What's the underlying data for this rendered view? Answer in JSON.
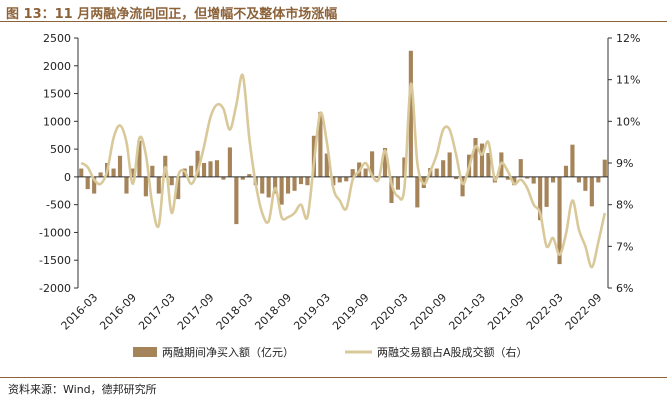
{
  "header": {
    "title": "图 13：11 月两融净流向回正，但增幅不及整体市场涨幅"
  },
  "footer": {
    "source": "资料来源：Wind，德邦研究所"
  },
  "colors": {
    "bar": "#a5845a",
    "line": "#d9c99a",
    "accent": "#8c6239"
  },
  "chart_data": {
    "type": "bar+line",
    "title": "",
    "xlabel": "",
    "ylabel": "",
    "ylim_left": [
      -2000,
      2500
    ],
    "yticks_left": [
      "2500",
      "2000",
      "1500",
      "1000",
      "500",
      "0",
      "-500",
      "-1000",
      "-1500",
      "-2000"
    ],
    "ylim_right": [
      6,
      12
    ],
    "yticks_right": [
      "12%",
      "11%",
      "10%",
      "9%",
      "8%",
      "7%",
      "6%"
    ],
    "x_tick_labels": [
      "2016-03",
      "2016-09",
      "2017-03",
      "2017-09",
      "2018-03",
      "2018-09",
      "2019-03",
      "2019-09",
      "2020-03",
      "2020-09",
      "2021-03",
      "2021-09",
      "2022-03",
      "2022-09"
    ],
    "x_tick_index": [
      2,
      8,
      14,
      20,
      26,
      32,
      38,
      44,
      50,
      56,
      62,
      68,
      74,
      80
    ],
    "legend": [
      "两融期间净买入额（亿元）",
      "两融交易额占A股成交额（右）"
    ],
    "series": [
      {
        "name": "两融期间净买入额（亿元）",
        "axis": "left",
        "kind": "bar",
        "values": [
          150,
          -220,
          -300,
          80,
          250,
          150,
          380,
          -300,
          150,
          650,
          -350,
          200,
          -300,
          380,
          -150,
          -400,
          150,
          200,
          470,
          250,
          280,
          300,
          -50,
          530,
          -850,
          -50,
          50,
          -150,
          -300,
          -370,
          -300,
          -500,
          -300,
          -250,
          -130,
          -150,
          740,
          1170,
          420,
          -150,
          -100,
          -80,
          140,
          260,
          150,
          460,
          -20,
          520,
          -470,
          -230,
          350,
          2270,
          -550,
          -200,
          160,
          150,
          300,
          440,
          -40,
          -350,
          400,
          700,
          600,
          430,
          -100,
          440,
          -50,
          -150,
          320,
          -30,
          -120,
          -780,
          -540,
          -100,
          -1570,
          200,
          580,
          -100,
          -250,
          -530,
          -100,
          310
        ]
      },
      {
        "name": "两融交易额占A股成交额（右）",
        "axis": "right",
        "kind": "line",
        "values": [
          9.0,
          8.9,
          8.6,
          8.5,
          8.8,
          9.6,
          9.9,
          9.5,
          8.5,
          9.6,
          9.2,
          8.0,
          7.5,
          8.9,
          7.8,
          8.7,
          8.8,
          8.5,
          8.8,
          9.4,
          10.1,
          10.4,
          10.3,
          9.8,
          10.4,
          11.1,
          9.6,
          8.5,
          7.8,
          7.6,
          8.4,
          7.7,
          7.7,
          7.8,
          8.0,
          7.7,
          9.0,
          10.2,
          9.5,
          8.4,
          8.1,
          7.9,
          8.6,
          8.8,
          9.0,
          8.7,
          8.6,
          9.3,
          8.5,
          8.2,
          8.4,
          10.9,
          9.0,
          8.5,
          8.8,
          9.2,
          9.8,
          9.8,
          9.2,
          8.5,
          8.9,
          9.4,
          9.2,
          9.5,
          8.6,
          9.0,
          8.8,
          8.5,
          8.6,
          8.4,
          8.0,
          7.8,
          7.0,
          7.2,
          6.8,
          7.3,
          8.1,
          7.4,
          7.0,
          6.5,
          7.1,
          7.8
        ]
      }
    ]
  }
}
